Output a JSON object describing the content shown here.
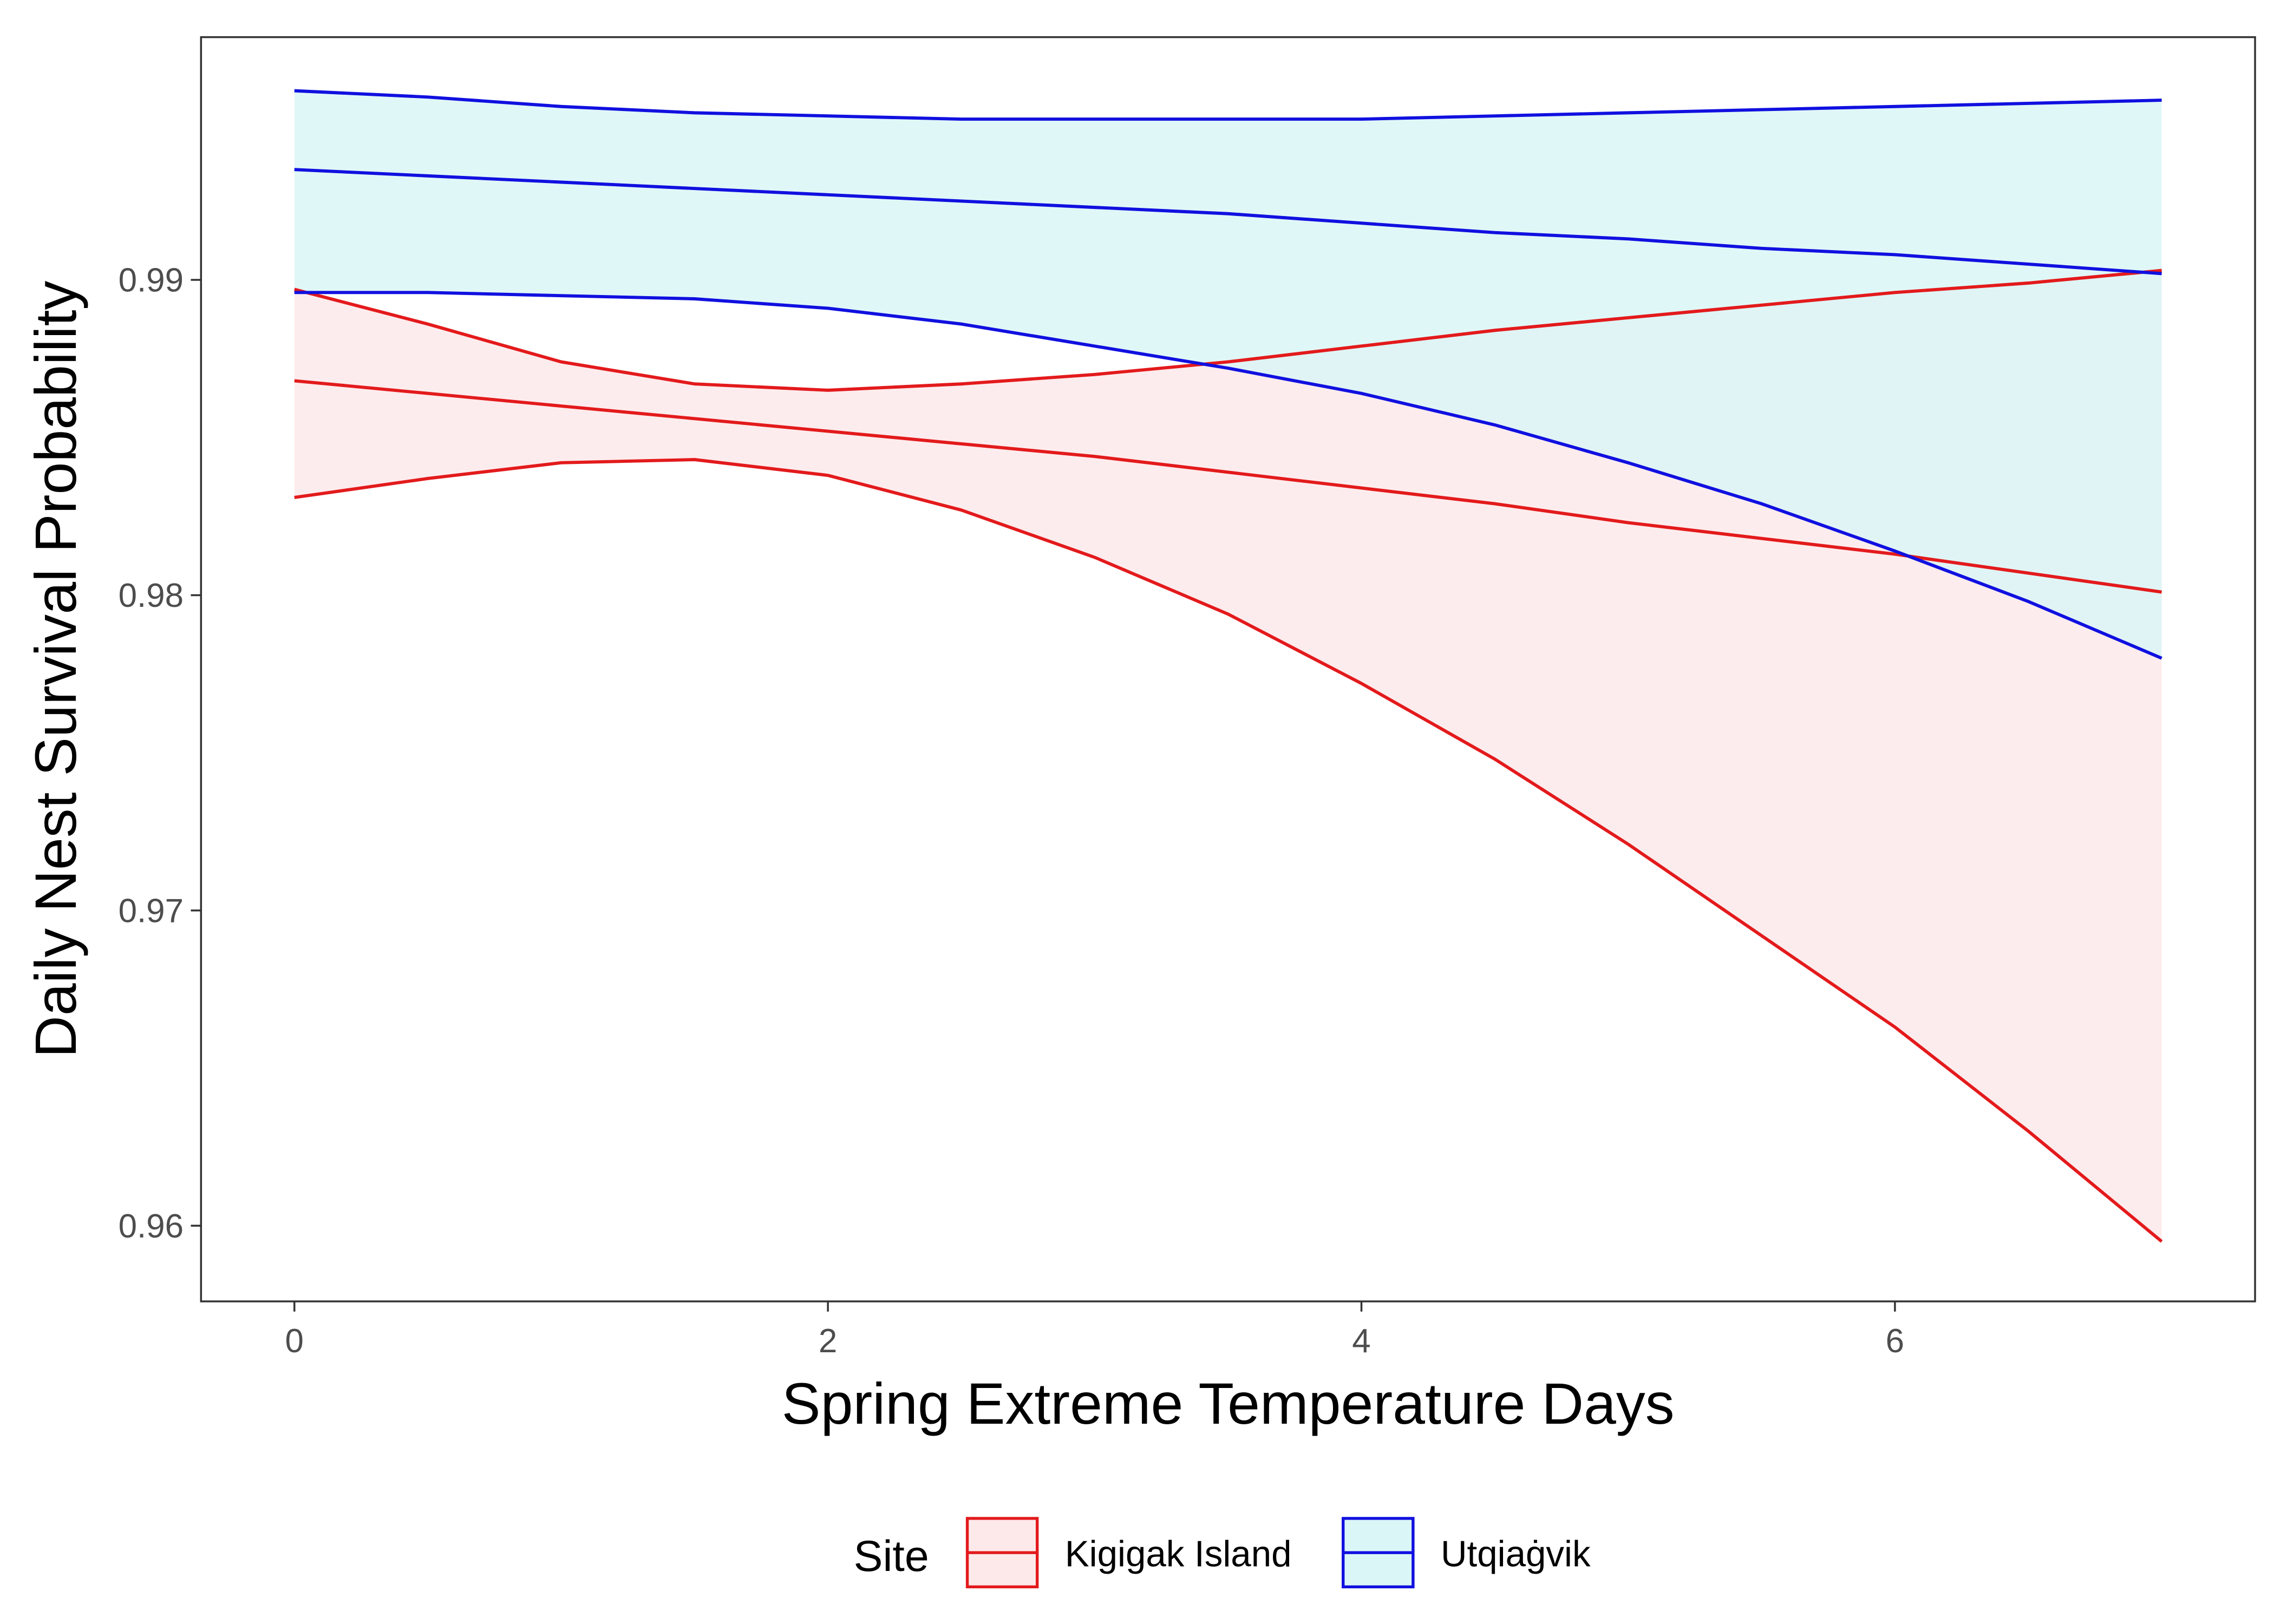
{
  "chart_data": {
    "type": "line",
    "xlabel": "Spring Extreme Temperature Days",
    "ylabel": "Daily Nest Survival Probability",
    "xlim": [
      -0.35,
      7.35
    ],
    "ylim": [
      0.9576,
      0.9977
    ],
    "x_ticks": [
      0,
      2,
      4,
      6
    ],
    "y_ticks": [
      0.96,
      0.97,
      0.98,
      0.99
    ],
    "x_tick_labels": [
      "0",
      "2",
      "4",
      "6"
    ],
    "y_tick_labels": [
      "0.96",
      "0.97",
      "0.98",
      "0.99"
    ],
    "grid": false,
    "legend_position": "bottom",
    "legend_title": "Site",
    "x": [
      0,
      0.5,
      1,
      1.5,
      2,
      2.5,
      3,
      3.5,
      4,
      4.5,
      5,
      5.5,
      6,
      6.5,
      7
    ],
    "series": [
      {
        "name": "Kigigak Island",
        "color": "#e31a1c",
        "fill": "#fde9ea",
        "values": [
          0.9868,
          0.9864,
          0.986,
          0.9856,
          0.9852,
          0.9848,
          0.9844,
          0.9839,
          0.9834,
          0.9829,
          0.9823,
          0.9818,
          0.9813,
          0.9807,
          0.9801
        ],
        "lower": [
          0.9831,
          0.9837,
          0.9842,
          0.9843,
          0.9838,
          0.9827,
          0.9812,
          0.9794,
          0.9772,
          0.9748,
          0.9721,
          0.9692,
          0.9663,
          0.963,
          0.9595
        ],
        "upper": [
          0.9897,
          0.9886,
          0.9874,
          0.9867,
          0.9865,
          0.9867,
          0.987,
          0.9874,
          0.9879,
          0.9884,
          0.9888,
          0.9892,
          0.9896,
          0.9899,
          0.9903
        ]
      },
      {
        "name": "Utqiaġvik",
        "color": "#1010e0",
        "fill": "#dbf6f6",
        "values": [
          0.9935,
          0.9933,
          0.9931,
          0.9929,
          0.9927,
          0.9925,
          0.9923,
          0.9921,
          0.9918,
          0.9915,
          0.9913,
          0.991,
          0.9908,
          0.9905,
          0.9902
        ],
        "lower": [
          0.9896,
          0.9896,
          0.9895,
          0.9894,
          0.9891,
          0.9886,
          0.9879,
          0.9872,
          0.9864,
          0.9854,
          0.9842,
          0.9829,
          0.9814,
          0.9798,
          0.978
        ],
        "upper": [
          0.996,
          0.9958,
          0.9955,
          0.9953,
          0.9952,
          0.9951,
          0.9951,
          0.9951,
          0.9951,
          0.9952,
          0.9953,
          0.9954,
          0.9955,
          0.9956,
          0.9957
        ]
      }
    ]
  }
}
